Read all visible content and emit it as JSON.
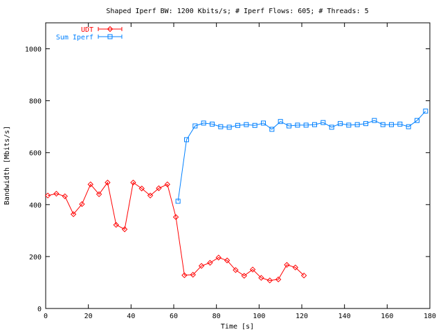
{
  "chart_data": {
    "type": "line",
    "title": "Shaped Iperf BW: 1200 Kbits/s; # Iperf Flows: 605; # Threads: 5",
    "xlabel": "Time [s]",
    "ylabel": "Bandwidth [Mbits/s]",
    "xlim": [
      0,
      180
    ],
    "ylim": [
      0,
      1100
    ],
    "xticks": [
      0,
      20,
      40,
      60,
      80,
      100,
      120,
      140,
      160,
      180
    ],
    "yticks": [
      0,
      200,
      400,
      600,
      800,
      1000
    ],
    "grid": false,
    "legend_position": "top-left",
    "series": [
      {
        "name": "UDT",
        "color": "#ff0000",
        "marker": "diamond",
        "points": [
          [
            1,
            435
          ],
          [
            5,
            442
          ],
          [
            9,
            432
          ],
          [
            13,
            363
          ],
          [
            17,
            402
          ],
          [
            21,
            478
          ],
          [
            25,
            440
          ],
          [
            29,
            485
          ],
          [
            33,
            322
          ],
          [
            37,
            305
          ],
          [
            41,
            485
          ],
          [
            45,
            462
          ],
          [
            49,
            435
          ],
          [
            53,
            463
          ],
          [
            57,
            478
          ],
          [
            61,
            352
          ],
          [
            65,
            128
          ],
          [
            69,
            130
          ],
          [
            73,
            164
          ],
          [
            77,
            176
          ],
          [
            81,
            196
          ],
          [
            85,
            185
          ],
          [
            89,
            148
          ],
          [
            93,
            126
          ],
          [
            97,
            150
          ],
          [
            101,
            118
          ],
          [
            105,
            108
          ],
          [
            109,
            112
          ],
          [
            113,
            168
          ],
          [
            117,
            158
          ],
          [
            121,
            127
          ]
        ]
      },
      {
        "name": "Sum Iperf",
        "color": "#0080ff",
        "marker": "square",
        "points": [
          [
            62,
            413
          ],
          [
            66,
            650
          ],
          [
            70,
            703
          ],
          [
            74,
            714
          ],
          [
            78,
            710
          ],
          [
            82,
            700
          ],
          [
            86,
            698
          ],
          [
            90,
            705
          ],
          [
            94,
            708
          ],
          [
            98,
            705
          ],
          [
            102,
            714
          ],
          [
            106,
            690
          ],
          [
            110,
            720
          ],
          [
            114,
            703
          ],
          [
            118,
            706
          ],
          [
            122,
            706
          ],
          [
            126,
            708
          ],
          [
            130,
            716
          ],
          [
            134,
            698
          ],
          [
            138,
            712
          ],
          [
            142,
            706
          ],
          [
            146,
            708
          ],
          [
            150,
            712
          ],
          [
            154,
            724
          ],
          [
            158,
            708
          ],
          [
            162,
            708
          ],
          [
            166,
            710
          ],
          [
            170,
            700
          ],
          [
            174,
            724
          ],
          [
            178,
            760
          ]
        ]
      }
    ]
  }
}
